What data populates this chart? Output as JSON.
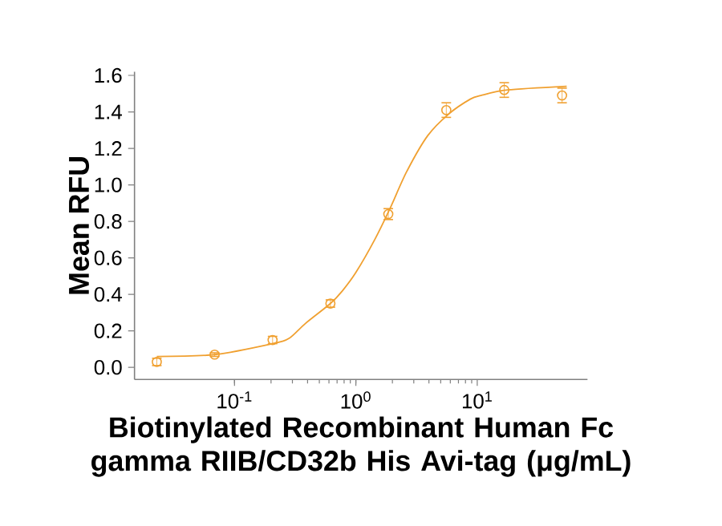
{
  "chart_data": {
    "type": "scatter",
    "xlabel": "Biotinylated Recombinant Human Fc gamma RIIB/CD32b His Avi-tag (μg/mL)",
    "ylabel": "Mean RFU",
    "log": "x",
    "xlim": [
      0.015,
      81
    ],
    "ylim": [
      -0.066,
      1.62
    ],
    "xticks": [
      {
        "value": 0.1,
        "label": "10$^{-1}$"
      },
      {
        "value": 1,
        "label": "10$^{0}$"
      },
      {
        "value": 10,
        "label": "10$^{1}$"
      }
    ],
    "yticks": [
      {
        "value": 0,
        "label": "0.0"
      },
      {
        "value": 0.2,
        "label": "0.2"
      },
      {
        "value": 0.4,
        "label": "0.4"
      },
      {
        "value": 0.6,
        "label": "0.6"
      },
      {
        "value": 0.8,
        "label": "0.8"
      },
      {
        "value": 1.0,
        "label": "1.0"
      },
      {
        "value": 1.2,
        "label": "1.2"
      },
      {
        "value": 1.4,
        "label": "1.4"
      },
      {
        "value": 1.6,
        "label": "1.6"
      }
    ],
    "series": [
      {
        "type": "scatter",
        "marker": "circle",
        "color": "#f0a030",
        "x": [
          0.0229,
          0.0686,
          0.206,
          0.617,
          1.85,
          5.56,
          16.7,
          50
        ],
        "values": [
          0.03,
          0.07,
          0.15,
          0.35,
          0.84,
          1.41,
          1.52,
          1.49
        ],
        "errors": [
          0.02,
          0.01,
          0.02,
          0.02,
          0.03,
          0.04,
          0.04,
          0.04
        ]
      },
      {
        "type": "line",
        "marker": "none",
        "line_style": "solid",
        "color": "#f0a030",
        "x": [
          0.0229,
          0.0686,
          0.206,
          0.283,
          0.383,
          0.617,
          0.776,
          1,
          1.43,
          1.91,
          2.61,
          3.91,
          5.86,
          8.77,
          10.7,
          17.8,
          54.6
        ],
        "values": [
          0.06,
          0.07,
          0.13,
          0.16,
          0.24,
          0.35,
          0.42,
          0.52,
          0.7,
          0.87,
          1.07,
          1.27,
          1.39,
          1.47,
          1.49,
          1.52,
          1.54
        ]
      }
    ]
  }
}
